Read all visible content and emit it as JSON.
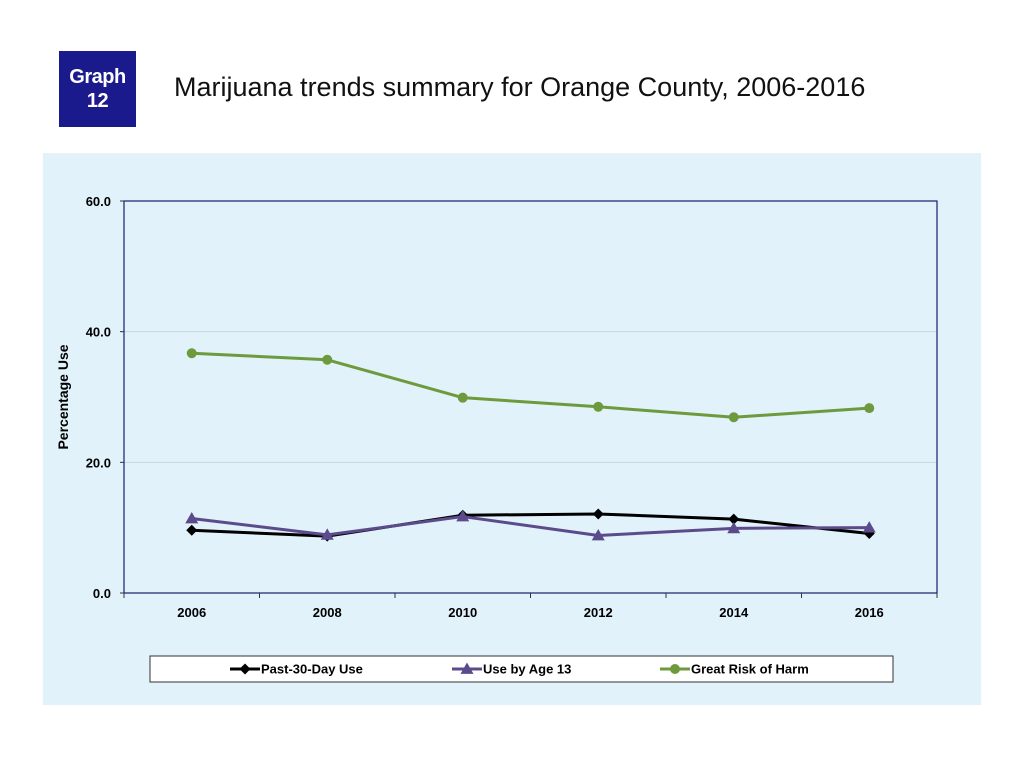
{
  "badge": {
    "line1": "Graph",
    "line2": "12"
  },
  "title": "Marijuana trends summary for Orange County, 2006-2016",
  "colors": {
    "badge": "#1a1a8c",
    "panel": "#e1f2fb",
    "plot": "#e1f2fb",
    "axis": "#1c1c6e"
  },
  "chart_data": {
    "type": "line",
    "title": "Marijuana trends summary for Orange County, 2006-2016",
    "xlabel": "",
    "ylabel": "Percentage Use",
    "ylim": [
      0,
      60
    ],
    "yticks": [
      "0.0",
      "20.0",
      "40.0",
      "60.0"
    ],
    "ytick_values": [
      0,
      20,
      40,
      60
    ],
    "categories": [
      "2006",
      "2008",
      "2010",
      "2012",
      "2014",
      "2016"
    ],
    "grid": true,
    "legend_position": "bottom",
    "series": [
      {
        "name": "Past-30-Day Use",
        "marker": "diamond",
        "color": "#000000",
        "values": [
          9.6,
          8.7,
          11.9,
          12.1,
          11.3,
          9.1
        ]
      },
      {
        "name": "Use by Age 13",
        "marker": "triangle",
        "color": "#5b4b8a",
        "values": [
          11.4,
          8.9,
          11.7,
          8.8,
          9.9,
          10.0
        ]
      },
      {
        "name": "Great Risk of Harm",
        "marker": "circle",
        "color": "#6d9a3c",
        "values": [
          36.7,
          35.7,
          29.9,
          28.5,
          26.9,
          28.3
        ]
      }
    ]
  }
}
